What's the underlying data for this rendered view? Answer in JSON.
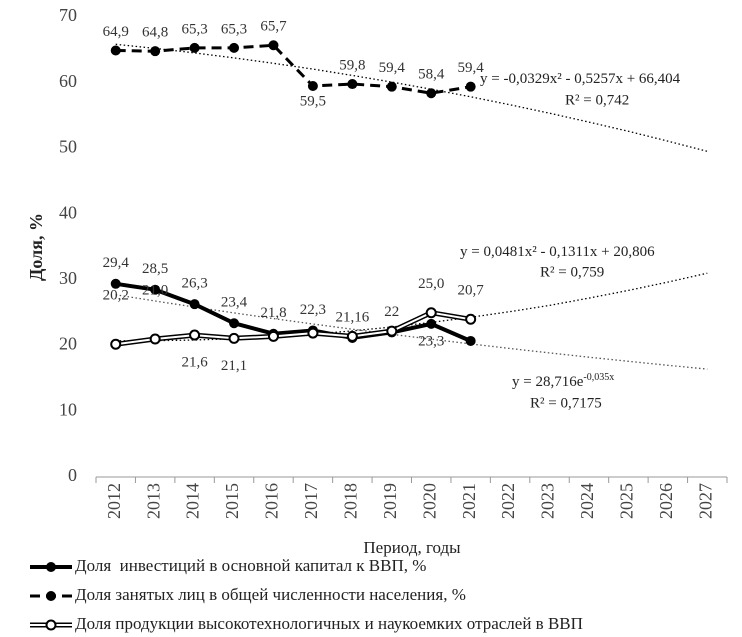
{
  "chart_data": {
    "type": "line",
    "y_label": "Доля, %",
    "x_label": "Период, годы",
    "categories": [
      "2012",
      "2013",
      "2014",
      "2015",
      "2016",
      "2017",
      "2018",
      "2019",
      "2020",
      "2021",
      "2022",
      "2023",
      "2024",
      "2025",
      "2026",
      "2027"
    ],
    "ylim": [
      0,
      70
    ],
    "yticks": [
      0,
      10,
      20,
      30,
      40,
      50,
      60,
      70
    ],
    "grid": false,
    "legend": "bottom",
    "series": [
      {
        "name": "Доля  инвестиций в основной капитал к ВВП, %",
        "color": "#000000",
        "style": "solid",
        "values": [
          29.4,
          28.5,
          26.3,
          23.4,
          21.8,
          22.3,
          21.16,
          22,
          23.3,
          20.7,
          null,
          null,
          null,
          null,
          null,
          null
        ],
        "value_labels": [
          "29,4",
          "28,5",
          "26,3",
          "23,4",
          "21,8",
          "22,3",
          "21,16",
          "22",
          "23,3",
          "20,7",
          null,
          null,
          null,
          null,
          null,
          null
        ]
      },
      {
        "name": "Доля занятых лиц в общей численности населения, %",
        "color": "#000000",
        "style": "dashed",
        "values": [
          64.9,
          64.8,
          65.3,
          65.3,
          65.7,
          59.5,
          59.8,
          59.4,
          58.4,
          59.4,
          null,
          null,
          null,
          null,
          null,
          null
        ],
        "value_labels": [
          "64,9",
          "64,8",
          "65,3",
          "65,3",
          "65,7",
          "59,5",
          "59,8",
          "59,4",
          "58,4",
          "59,4",
          null,
          null,
          null,
          null,
          null,
          null
        ]
      },
      {
        "name": "Доля продукции высокотехнологичных и наукоемких отраслей в ВВП",
        "color": "#000000",
        "style": "double",
        "values": [
          20.2,
          21.0,
          21.6,
          21.1,
          21.4,
          21.9,
          21.4,
          22.2,
          25.0,
          24.0,
          null,
          null,
          null,
          null,
          null,
          null
        ],
        "value_labels": [
          "20,2",
          "21,0",
          "21,6",
          "21,1",
          null,
          null,
          null,
          null,
          "25,0",
          null,
          null,
          null,
          null,
          null,
          null,
          null
        ]
      }
    ],
    "trendlines": [
      {
        "color": "#000000",
        "equation": "y = -0,0329x² - 0,5257x + 66,404",
        "r2": "R² = 0,742",
        "values": [
          65.85,
          65.22,
          64.53,
          63.77,
          62.95,
          62.07,
          61.11,
          60.09,
          59.01,
          57.86,
          56.64,
          55.36,
          54.01,
          52.6,
          51.12,
          49.57
        ]
      },
      {
        "color": "#000000",
        "equation": "y = 0,0481x² - 0,1311x + 20,806",
        "r2": "R² = 0,759",
        "values": [
          20.72,
          20.74,
          20.85,
          21.05,
          21.35,
          21.76,
          22.24,
          22.83,
          23.52,
          24.3,
          25.17,
          26.11,
          27.22,
          28.4,
          29.66,
          31.02
        ]
      },
      {
        "color": "#555555",
        "equation": "y = 28,716e",
        "equation_superscript": "-0,035x",
        "r2": "R² = 0,7175",
        "values": [
          27.73,
          26.78,
          25.86,
          24.97,
          24.11,
          23.29,
          22.49,
          21.72,
          20.97,
          20.25,
          19.55,
          18.88,
          18.23,
          17.61,
          17.0,
          16.42
        ]
      }
    ]
  }
}
